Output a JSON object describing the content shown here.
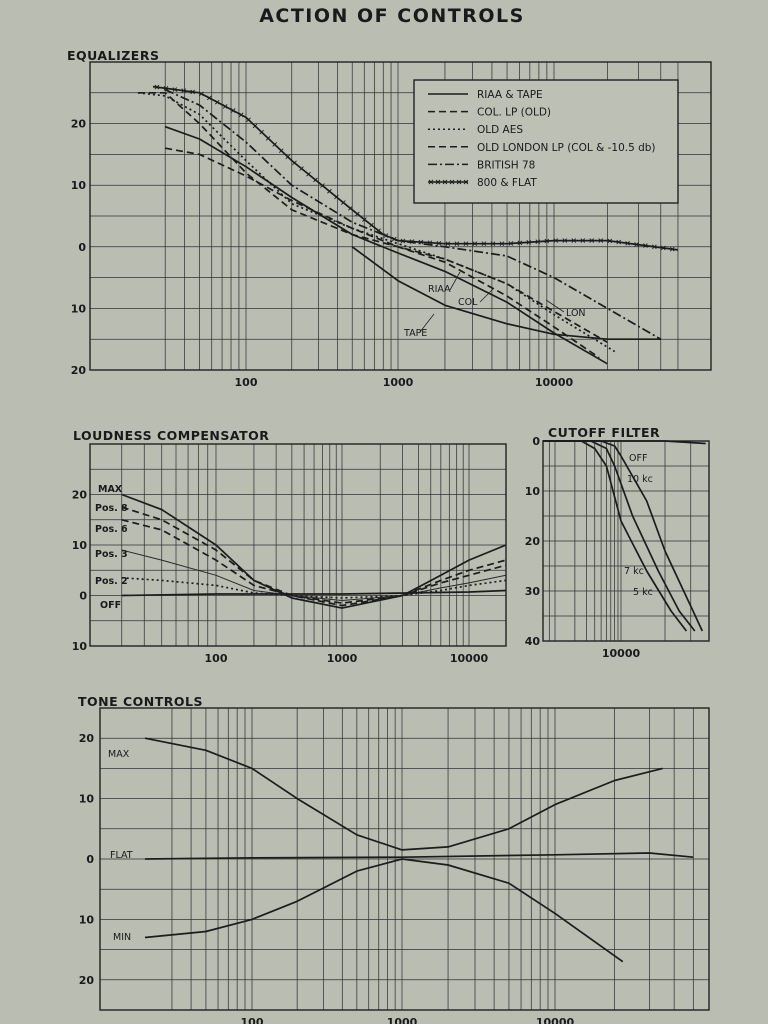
{
  "page": {
    "title": "ACTION OF CONTROLS",
    "background": "#b9bdb2",
    "ink": "#1c1c1c"
  },
  "chart_data": [
    {
      "id": "equalizers",
      "type": "line",
      "title": "EQUALIZERS",
      "xscale": "log",
      "xlim": [
        20,
        60000
      ],
      "ylim": [
        -20,
        30
      ],
      "x_tick_labels": [
        "100",
        "1000",
        "10000"
      ],
      "y_tick_labels": [
        {
          "value": 20,
          "label": "20"
        },
        {
          "value": 10,
          "label": "10"
        },
        {
          "value": 0,
          "label": "0"
        },
        {
          "value": -10,
          "label": "10"
        },
        {
          "value": -20,
          "label": "20"
        }
      ],
      "legend": {
        "position": "top-right",
        "entries": [
          "RIAA & TAPE",
          "COL. LP (OLD)",
          "OLD AES",
          "OLD LONDON LP (COL & -10.5 db)",
          "BRITISH 78",
          "800 & FLAT"
        ]
      },
      "annotations": [
        "RIAA",
        "COL",
        "LON",
        "TAPE"
      ],
      "series": [
        {
          "name": "RIAA & TAPE",
          "style": "solid",
          "x": [
            30,
            50,
            100,
            200,
            500,
            1000,
            2000,
            5000,
            10000,
            20000
          ],
          "y": [
            19.5,
            17.5,
            13,
            8,
            2,
            -1,
            -4,
            -9,
            -14,
            -19
          ]
        },
        {
          "name": "RIAA & TAPE",
          "style": "solid",
          "x": [
            500,
            1000,
            2000,
            5000,
            10000,
            20000,
            40000
          ],
          "y": [
            0,
            -5.5,
            -9.5,
            -12.5,
            -14.2,
            -15,
            -15
          ]
        },
        {
          "name": "COL. LP (OLD)",
          "style": "dash",
          "x": [
            30,
            50,
            100,
            200,
            500,
            1000,
            2000,
            5000,
            10000,
            18000
          ],
          "y": [
            16,
            15,
            11.5,
            7.5,
            3,
            0,
            -2.5,
            -8,
            -13,
            -18
          ]
        },
        {
          "name": "OLD AES",
          "style": "dot",
          "x": [
            20,
            30,
            50,
            100,
            200,
            500,
            1000,
            2000,
            5000,
            10000,
            22000
          ],
          "y": [
            25,
            24.5,
            21.5,
            14,
            7,
            3,
            0.5,
            -2,
            -6,
            -11,
            -17
          ]
        },
        {
          "name": "OLD LONDON LP (COL & -10.5 db)",
          "style": "dash",
          "x": [
            20,
            30,
            50,
            100,
            200,
            500,
            1000,
            2000,
            5000,
            10000,
            20000
          ],
          "y": [
            25,
            25,
            20,
            12,
            6,
            2,
            0,
            -2,
            -6,
            -10.5,
            -15.5
          ]
        },
        {
          "name": "BRITISH 78",
          "style": "dashdot",
          "x": [
            30,
            50,
            100,
            200,
            500,
            1000,
            2000,
            5000,
            10000,
            20000,
            40000
          ],
          "y": [
            25.5,
            23,
            17,
            10,
            4,
            1,
            0,
            -1.5,
            -5,
            -10,
            -15
          ]
        },
        {
          "name": "800 & FLAT",
          "style": "solid-x",
          "x": [
            25,
            50,
            100,
            200,
            500,
            800,
            1000,
            2000,
            5000,
            10000,
            20000,
            50000
          ],
          "y": [
            26,
            25,
            21,
            14,
            6,
            2,
            1,
            0.5,
            0.5,
            1,
            1,
            -0.5
          ]
        }
      ]
    },
    {
      "id": "loudness",
      "type": "line",
      "title": "LOUDNESS COMPENSATOR",
      "xscale": "log",
      "xlim": [
        20,
        20000
      ],
      "ylim": [
        -10,
        30
      ],
      "x_tick_labels": [
        "100",
        "1000",
        "10000"
      ],
      "y_tick_labels": [
        {
          "value": 20,
          "label": "20"
        },
        {
          "value": 10,
          "label": "10"
        },
        {
          "value": 0,
          "label": "0"
        },
        {
          "value": -10,
          "label": "10"
        }
      ],
      "series_labels": [
        "MAX",
        "Pos. 8",
        "Pos. 6",
        "Pos. 3",
        "Pos. 2",
        "OFF"
      ],
      "series": [
        {
          "name": "MAX",
          "style": "solid",
          "x": [
            30,
            50,
            100,
            200,
            400,
            1000,
            3000,
            6000,
            10000,
            20000
          ],
          "y": [
            20,
            17,
            10,
            3,
            -0.5,
            -2.5,
            0,
            4,
            7,
            10
          ]
        },
        {
          "name": "Pos. 8",
          "style": "dash",
          "x": [
            30,
            50,
            100,
            200,
            400,
            1000,
            3000,
            6000,
            10000,
            20000
          ],
          "y": [
            17.5,
            15,
            9,
            3,
            0,
            -2,
            0,
            3,
            5,
            7
          ]
        },
        {
          "name": "Pos. 6",
          "style": "dash",
          "x": [
            30,
            50,
            100,
            200,
            400,
            1000,
            3000,
            6000,
            10000,
            20000
          ],
          "y": [
            15,
            13,
            7,
            2,
            0,
            -1.5,
            0,
            2.5,
            4,
            6
          ]
        },
        {
          "name": "Pos. 3",
          "style": "thin",
          "x": [
            30,
            50,
            100,
            200,
            400,
            1000,
            3000,
            6000,
            10000,
            20000
          ],
          "y": [
            9,
            7,
            4,
            1,
            0,
            -1,
            0,
            1.5,
            2.5,
            4
          ]
        },
        {
          "name": "Pos. 2",
          "style": "dot",
          "x": [
            30,
            50,
            100,
            200,
            400,
            1000,
            3000,
            6000,
            10000,
            20000
          ],
          "y": [
            3.5,
            3,
            2,
            0.5,
            0,
            -0.5,
            0,
            1,
            2,
            3
          ]
        },
        {
          "name": "OFF",
          "style": "solid",
          "x": [
            30,
            100,
            1000,
            10000,
            20000
          ],
          "y": [
            0,
            0.3,
            0.3,
            0.7,
            1
          ]
        }
      ]
    },
    {
      "id": "cutoff",
      "type": "line",
      "title": "CUTOFF FILTER",
      "xscale": "log",
      "xlim": [
        800,
        40000
      ],
      "ylim": [
        0,
        40
      ],
      "y_inverted": true,
      "x_tick_labels": [
        "10000"
      ],
      "y_tick_labels": [
        {
          "value": 0,
          "label": "0"
        },
        {
          "value": 10,
          "label": "10"
        },
        {
          "value": 20,
          "label": "20"
        },
        {
          "value": 30,
          "label": "30"
        },
        {
          "value": 40,
          "label": "40"
        }
      ],
      "series_labels": [
        "OFF",
        "10 kc",
        "7 kc",
        "5 kc"
      ],
      "series": [
        {
          "name": "OFF",
          "x": [
            800,
            5000,
            10000,
            20000,
            38000
          ],
          "y": [
            0,
            0,
            0,
            0,
            0.5
          ]
        },
        {
          "name": "10 kc",
          "x": [
            800,
            5000,
            8000,
            10000,
            15000,
            20000,
            30000,
            36000
          ],
          "y": [
            0,
            0,
            1,
            3,
            12,
            22,
            33,
            38
          ]
        },
        {
          "name": "7 kc",
          "x": [
            800,
            3500,
            6000,
            8000,
            12000,
            18000,
            25000,
            32000
          ],
          "y": [
            0,
            0,
            1.5,
            5,
            15,
            26,
            34,
            38
          ]
        },
        {
          "name": "5 kc",
          "x": [
            800,
            2500,
            4000,
            6000,
            10000,
            15000,
            22000,
            28000
          ],
          "y": [
            0,
            0,
            1.5,
            5,
            16,
            26,
            34,
            38
          ]
        }
      ]
    },
    {
      "id": "tone",
      "type": "line",
      "title": "TONE CONTROLS",
      "xscale": "log",
      "xlim": [
        20,
        60000
      ],
      "ylim": [
        -25,
        25
      ],
      "x_tick_labels": [
        "100",
        "1000",
        "10000"
      ],
      "y_tick_labels": [
        {
          "value": 20,
          "label": "20"
        },
        {
          "value": 10,
          "label": "10"
        },
        {
          "value": 0,
          "label": "0"
        },
        {
          "value": -10,
          "label": "10"
        },
        {
          "value": -20,
          "label": "20"
        }
      ],
      "series_labels": [
        "MAX",
        "FLAT",
        "MIN"
      ],
      "series": [
        {
          "name": "MAX",
          "x": [
            20,
            50,
            100,
            200,
            500,
            1000,
            2000,
            5000,
            10000,
            20000,
            35000
          ],
          "y": [
            20,
            18,
            15,
            10,
            4,
            1.5,
            2,
            5,
            9,
            13,
            15
          ]
        },
        {
          "name": "FLAT",
          "x": [
            20,
            100,
            1000,
            10000,
            30000,
            50000
          ],
          "y": [
            0,
            0.2,
            0.3,
            0.7,
            1,
            0.3
          ]
        },
        {
          "name": "MIN",
          "x": [
            20,
            50,
            100,
            200,
            500,
            1000,
            2000,
            5000,
            10000,
            22000
          ],
          "y": [
            -13,
            -12,
            -10,
            -7,
            -2,
            0,
            -1,
            -4,
            -9,
            -17
          ]
        }
      ]
    }
  ]
}
